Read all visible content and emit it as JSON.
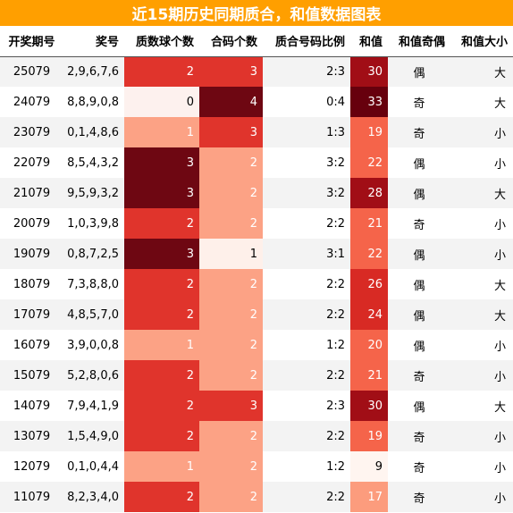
{
  "title": "近15期历史同期质合，和值数据图表",
  "chart_data": {
    "type": "table",
    "title": "近15期历史同期质合，和值数据图表",
    "columns": [
      "开奖期号",
      "奖号",
      "质数球个数",
      "合码个数",
      "质合号码比例",
      "和值",
      "和值奇偶",
      "和值大小"
    ],
    "rows": [
      {
        "period": "25079",
        "draw": "2,9,6,7,6",
        "prime": 2,
        "composite": 3,
        "ratio": "2:3",
        "sum": 30,
        "parity": "偶",
        "size": "大"
      },
      {
        "period": "24079",
        "draw": "8,8,9,0,8",
        "prime": 0,
        "composite": 4,
        "ratio": "0:4",
        "sum": 33,
        "parity": "奇",
        "size": "大"
      },
      {
        "period": "23079",
        "draw": "0,1,4,8,6",
        "prime": 1,
        "composite": 3,
        "ratio": "1:3",
        "sum": 19,
        "parity": "奇",
        "size": "小"
      },
      {
        "period": "22079",
        "draw": "8,5,4,3,2",
        "prime": 3,
        "composite": 2,
        "ratio": "3:2",
        "sum": 22,
        "parity": "偶",
        "size": "小"
      },
      {
        "period": "21079",
        "draw": "9,5,9,3,2",
        "prime": 3,
        "composite": 2,
        "ratio": "3:2",
        "sum": 28,
        "parity": "偶",
        "size": "大"
      },
      {
        "period": "20079",
        "draw": "1,0,3,9,8",
        "prime": 2,
        "composite": 2,
        "ratio": "2:2",
        "sum": 21,
        "parity": "奇",
        "size": "小"
      },
      {
        "period": "19079",
        "draw": "0,8,7,2,5",
        "prime": 3,
        "composite": 1,
        "ratio": "3:1",
        "sum": 22,
        "parity": "偶",
        "size": "小"
      },
      {
        "period": "18079",
        "draw": "7,3,8,8,0",
        "prime": 2,
        "composite": 2,
        "ratio": "2:2",
        "sum": 26,
        "parity": "偶",
        "size": "大"
      },
      {
        "period": "17079",
        "draw": "4,8,5,7,0",
        "prime": 2,
        "composite": 2,
        "ratio": "2:2",
        "sum": 24,
        "parity": "偶",
        "size": "大"
      },
      {
        "period": "16079",
        "draw": "3,9,0,0,8",
        "prime": 1,
        "composite": 2,
        "ratio": "1:2",
        "sum": 20,
        "parity": "偶",
        "size": "小"
      },
      {
        "period": "15079",
        "draw": "5,2,8,0,6",
        "prime": 2,
        "composite": 2,
        "ratio": "2:2",
        "sum": 21,
        "parity": "奇",
        "size": "小"
      },
      {
        "period": "14079",
        "draw": "7,9,4,1,9",
        "prime": 2,
        "composite": 3,
        "ratio": "2:3",
        "sum": 30,
        "parity": "偶",
        "size": "大"
      },
      {
        "period": "13079",
        "draw": "1,5,4,9,0",
        "prime": 2,
        "composite": 2,
        "ratio": "2:2",
        "sum": 19,
        "parity": "奇",
        "size": "小"
      },
      {
        "period": "12079",
        "draw": "0,1,0,4,4",
        "prime": 1,
        "composite": 2,
        "ratio": "1:2",
        "sum": 9,
        "parity": "奇",
        "size": "小"
      },
      {
        "period": "11079",
        "draw": "8,2,3,4,0",
        "prime": 2,
        "composite": 2,
        "ratio": "2:2",
        "sum": 17,
        "parity": "奇",
        "size": "小"
      }
    ],
    "heat_colors": {
      "prime": {
        "0": "#fdf1ee",
        "1": "#fca285",
        "2": "#e0342c",
        "3": "#6e0712"
      },
      "composite": {
        "1": "#fef0ea",
        "2": "#fca285",
        "3": "#e0342c",
        "4": "#6e0712"
      },
      "sum_scale": {
        "min": 9,
        "max": 33,
        "colors": [
          "#fff5f0",
          "#fdd0bc",
          "#fc9c7d",
          "#f5644a",
          "#d82a24",
          "#a10e16",
          "#67000d"
        ]
      }
    }
  }
}
